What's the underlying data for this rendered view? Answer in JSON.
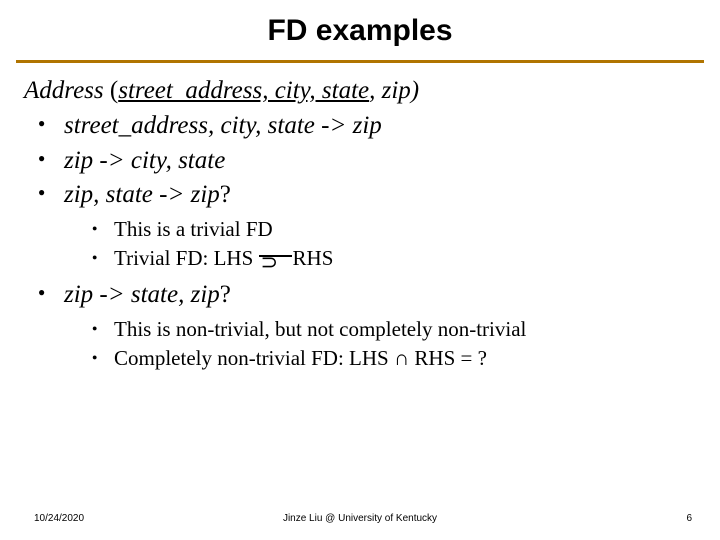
{
  "title": "FD examples",
  "relation": {
    "name": "Address",
    "key_attrs": "street_address, city, state",
    "rest": ", zip)"
  },
  "bullets": {
    "b1": "street_address, city, state -> zip",
    "b2": "zip -> city, state",
    "b3": "zip, state -> zip",
    "b3q": "?",
    "b3s1": "This is a trivial FD",
    "b3s2a": "Trivial FD: LHS ",
    "b3s2b": "RHS",
    "b4": "zip -> state, zip",
    "b4q": "?",
    "b4s1": "This is non-trivial, but not completely non-trivial",
    "b4s2": "Completely non-trivial FD: LHS ∩ RHS = ",
    "b4s2q": "?"
  },
  "footer": {
    "date": "10/24/2020",
    "author": "Jinze Liu @ University of Kentucky",
    "page": "6"
  },
  "colors": {
    "rule": "#b07400",
    "text": "#000000",
    "background": "#ffffff"
  }
}
